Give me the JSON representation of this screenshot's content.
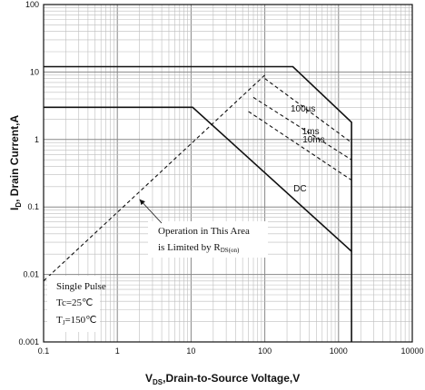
{
  "chart_data": {
    "type": "line",
    "x_scale": "log",
    "y_scale": "log",
    "xlim": [
      0.1,
      10000
    ],
    "ylim": [
      0.001,
      100
    ],
    "grid": true,
    "x_ticks": [
      "0.1",
      "1",
      "10",
      "100",
      "1000",
      "10000"
    ],
    "y_ticks": [
      "0.001",
      "0.01",
      "0.1",
      "1",
      "10",
      "100"
    ],
    "xlabel": {
      "main": "V",
      "sub": "DS",
      "rest": ",Drain-to-Source Voltage,V"
    },
    "ylabel": {
      "main": "I",
      "sub": "D",
      "rest": ", Drain Current,A"
    },
    "series": [
      {
        "name": "100µs",
        "style": "solid",
        "points": [
          [
            0.1,
            12
          ],
          [
            240,
            12
          ],
          [
            1500,
            1.8
          ],
          [
            1500,
            0.001
          ]
        ]
      },
      {
        "name": "1ms",
        "style": "dashed",
        "points": [
          [
            100,
            8
          ],
          [
            1500,
            0.9
          ]
        ]
      },
      {
        "name": "10ms",
        "style": "dashed",
        "points": [
          [
            70,
            4.2
          ],
          [
            1500,
            0.5
          ]
        ]
      },
      {
        "name": "",
        "style": "dashed",
        "points": [
          [
            60,
            2.6
          ],
          [
            1500,
            0.25
          ]
        ]
      },
      {
        "name": "DC",
        "style": "solid",
        "points": [
          [
            0.1,
            3
          ],
          [
            10.5,
            3
          ],
          [
            1500,
            0.022
          ]
        ]
      },
      {
        "name": "",
        "style": "dashed",
        "points": [
          [
            0.1,
            0.008
          ],
          [
            100,
            9
          ]
        ]
      }
    ],
    "annotations": [
      {
        "text": "100µs",
        "x": 330,
        "y": 2.6
      },
      {
        "text": "1ms",
        "x": 420,
        "y": 1.2
      },
      {
        "text": "10ms",
        "x": 460,
        "y": 0.9
      },
      {
        "text": "DC",
        "x": 300,
        "y": 0.17
      }
    ],
    "callout": {
      "line1": "Operation in This Area",
      "line2_prefix": "is Limited by R",
      "line2_sub": "DS(on)",
      "arrow_to": [
        2,
        0.13
      ]
    },
    "conditions": {
      "line1": "Single Pulse",
      "line2": "Tc=25℃",
      "line3_main": "T",
      "line3_sub": "J",
      "line3_rest": "=150℃"
    }
  }
}
